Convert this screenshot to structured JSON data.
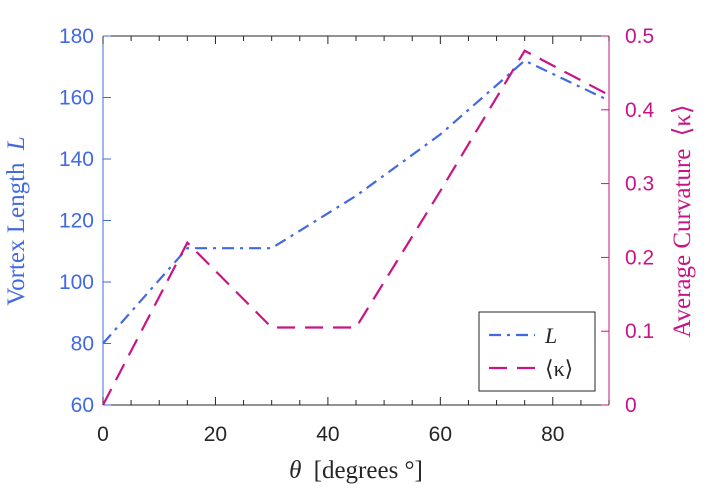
{
  "chart_data": {
    "type": "line",
    "title": "",
    "xlabel_symbol": "θ",
    "xlabel_text": "[degrees °]",
    "ylabel_left_text": "Vortex Length",
    "ylabel_left_symbol": "L",
    "ylabel_right_text": "Average Curvature",
    "ylabel_right_symbol": "⟨κ⟩",
    "xlim": [
      0,
      90
    ],
    "ylim_left": [
      60,
      180
    ],
    "ylim_right": [
      0,
      0.5
    ],
    "x_ticks": [
      0,
      20,
      40,
      60,
      80
    ],
    "y_left_ticks": [
      60,
      80,
      100,
      120,
      140,
      160,
      180
    ],
    "y_right_ticks": [
      0,
      0.1,
      0.2,
      0.3,
      0.4,
      0.5
    ],
    "y_right_tick_labels": [
      "0",
      "0.1",
      "0.2",
      "0.3",
      "0.4",
      "0.5"
    ],
    "legend_position": "bottom-right",
    "series": [
      {
        "name": "L",
        "axis": "left",
        "style": "dash-dot",
        "color": "#4169E1",
        "x": [
          0,
          15,
          30,
          45,
          60,
          75,
          90
        ],
        "values": [
          80,
          111,
          111,
          128,
          148,
          172,
          159
        ]
      },
      {
        "name": "⟨κ⟩",
        "axis": "right",
        "style": "dashed",
        "color": "#C71585",
        "x": [
          0,
          15,
          30,
          45,
          60,
          75,
          90
        ],
        "values": [
          0.0,
          0.22,
          0.105,
          0.105,
          0.29,
          0.48,
          0.42
        ]
      }
    ],
    "colors": {
      "left_axis": "#4169E1",
      "right_axis": "#C71585",
      "frame": "#262626",
      "text": "#262626"
    }
  }
}
